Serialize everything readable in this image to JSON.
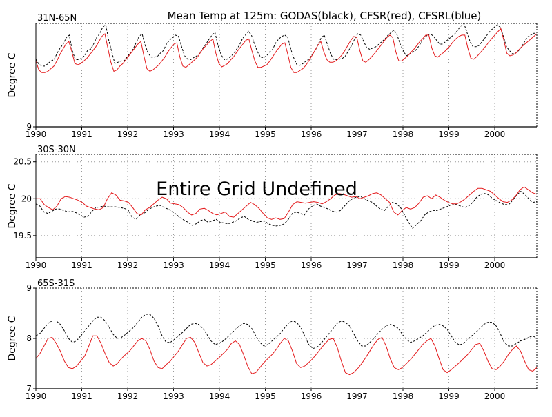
{
  "title": "Mean Temp at 125m: GODAS(black), CFSR(red), CFSRL(blue)",
  "colors": {
    "godas": "#000000",
    "cfsr": "#e41a1c",
    "grid": "#9a9a9a",
    "frame": "#000000"
  },
  "chart_data": [
    {
      "type": "line",
      "region": "31N-65N",
      "ylabel": "Degree C",
      "xlim": [
        1990,
        2000.917
      ],
      "ylim": [
        9,
        13
      ],
      "yticks": [
        9
      ],
      "xticks": [
        "1990",
        "1991",
        "1992",
        "1993",
        "1994",
        "1995",
        "1996",
        "1997",
        "1998",
        "1999",
        "2000"
      ],
      "grid": true,
      "series": [
        {
          "name": "GODAS",
          "color": "#000000",
          "dashed": true,
          "values": [
            11.62,
            11.42,
            11.35,
            11.35,
            11.45,
            11.55,
            11.6,
            11.85,
            12.05,
            12.2,
            12.45,
            12.55,
            11.95,
            11.6,
            11.6,
            11.65,
            11.75,
            11.95,
            12.0,
            12.2,
            12.45,
            12.6,
            12.85,
            12.95,
            12.35,
            11.9,
            11.45,
            11.5,
            11.55,
            11.55,
            11.7,
            11.85,
            12.0,
            12.25,
            12.5,
            12.6,
            12.15,
            11.85,
            11.7,
            11.7,
            11.72,
            11.85,
            11.95,
            12.2,
            12.35,
            12.45,
            12.55,
            12.5,
            12.1,
            11.75,
            11.62,
            11.6,
            11.68,
            11.75,
            11.85,
            12.05,
            12.2,
            12.38,
            12.55,
            12.65,
            12.15,
            11.8,
            11.6,
            11.62,
            11.7,
            11.82,
            11.98,
            12.15,
            12.4,
            12.55,
            12.7,
            12.55,
            12.2,
            11.9,
            11.7,
            11.68,
            11.75,
            11.9,
            12.0,
            12.25,
            12.4,
            12.5,
            12.55,
            12.45,
            12.0,
            11.65,
            11.4,
            11.38,
            11.45,
            11.55,
            11.62,
            11.8,
            11.95,
            12.2,
            12.45,
            12.55,
            12.2,
            11.85,
            11.62,
            11.6,
            11.62,
            11.65,
            11.75,
            11.95,
            12.15,
            12.4,
            12.6,
            12.55,
            12.3,
            12.05,
            12.0,
            12.05,
            12.1,
            12.2,
            12.3,
            12.4,
            12.55,
            12.65,
            12.75,
            12.55,
            12.2,
            11.95,
            11.75,
            11.8,
            11.88,
            11.95,
            12.1,
            12.28,
            12.45,
            12.55,
            12.6,
            12.5,
            12.35,
            12.2,
            12.2,
            12.3,
            12.4,
            12.5,
            12.6,
            12.75,
            12.9,
            13.0,
            12.65,
            12.3,
            12.1,
            12.1,
            12.15,
            12.3,
            12.45,
            12.62,
            12.75,
            12.85,
            12.95,
            12.85,
            12.5,
            12.1,
            11.95,
            11.82,
            11.85,
            11.95,
            12.1,
            12.3,
            12.48,
            12.55,
            12.62,
            12.62
          ]
        },
        {
          "name": "CFSR",
          "color": "#e41a1c",
          "dashed": false,
          "values": [
            11.55,
            11.2,
            11.1,
            11.1,
            11.15,
            11.25,
            11.35,
            11.55,
            11.8,
            12.0,
            12.2,
            12.3,
            11.9,
            11.45,
            11.4,
            11.45,
            11.55,
            11.65,
            11.8,
            11.95,
            12.1,
            12.3,
            12.5,
            12.6,
            12.05,
            11.5,
            11.15,
            11.2,
            11.35,
            11.45,
            11.6,
            11.75,
            11.9,
            12.05,
            12.2,
            12.3,
            11.75,
            11.25,
            11.15,
            11.2,
            11.3,
            11.4,
            11.55,
            11.7,
            11.9,
            12.05,
            12.2,
            12.25,
            11.7,
            11.35,
            11.3,
            11.4,
            11.5,
            11.6,
            11.72,
            11.9,
            12.05,
            12.18,
            12.3,
            12.4,
            11.85,
            11.45,
            11.32,
            11.38,
            11.45,
            11.6,
            11.72,
            11.9,
            12.05,
            12.2,
            12.35,
            12.4,
            11.95,
            11.55,
            11.3,
            11.3,
            11.35,
            11.4,
            11.55,
            11.72,
            11.9,
            12.05,
            12.2,
            12.25,
            11.8,
            11.3,
            11.1,
            11.1,
            11.18,
            11.25,
            11.38,
            11.55,
            11.75,
            11.95,
            12.15,
            12.3,
            11.9,
            11.6,
            11.5,
            11.5,
            11.55,
            11.65,
            11.78,
            11.95,
            12.15,
            12.35,
            12.5,
            12.45,
            11.95,
            11.55,
            11.5,
            11.6,
            11.72,
            11.85,
            12.0,
            12.15,
            12.3,
            12.45,
            12.55,
            12.45,
            11.9,
            11.55,
            11.55,
            11.65,
            11.75,
            11.88,
            12.0,
            12.15,
            12.3,
            12.42,
            12.55,
            12.55,
            12.05,
            11.75,
            11.7,
            11.8,
            11.88,
            12.0,
            12.12,
            12.28,
            12.4,
            12.5,
            12.55,
            12.55,
            12.05,
            11.65,
            11.62,
            11.72,
            11.85,
            11.98,
            12.12,
            12.28,
            12.42,
            12.55,
            12.68,
            12.8,
            12.35,
            11.85,
            11.75,
            11.78,
            11.85,
            11.98,
            12.1,
            12.2,
            12.3,
            12.4,
            12.5,
            12.6
          ]
        }
      ]
    },
    {
      "type": "line",
      "region": "30S-30N",
      "ylabel": "Degree C",
      "annotation": "Entire Grid Undefined",
      "xlim": [
        1990,
        2000.917
      ],
      "ylim": [
        19.2,
        20.6
      ],
      "yticks": [
        19.5,
        20,
        20.5
      ],
      "xticks": [
        "1990",
        "1991",
        "1992",
        "1993",
        "1994",
        "1995",
        "1996",
        "1997",
        "1998",
        "1999",
        "2000"
      ],
      "grid": true,
      "series": [
        {
          "name": "GODAS",
          "color": "#000000",
          "dashed": true,
          "values": [
            19.93,
            19.9,
            19.82,
            19.8,
            19.83,
            19.86,
            19.86,
            19.84,
            19.82,
            19.83,
            19.81,
            19.78,
            19.75,
            19.76,
            19.83,
            19.88,
            19.89,
            19.9,
            19.89,
            19.89,
            19.89,
            19.88,
            19.87,
            19.85,
            19.75,
            19.72,
            19.78,
            19.8,
            19.85,
            19.88,
            19.9,
            19.91,
            19.88,
            19.86,
            19.83,
            19.79,
            19.74,
            19.71,
            19.68,
            19.64,
            19.66,
            19.7,
            19.72,
            19.68,
            19.7,
            19.72,
            19.68,
            19.67,
            19.66,
            19.68,
            19.7,
            19.74,
            19.76,
            19.72,
            19.7,
            19.68,
            19.69,
            19.7,
            19.66,
            19.64,
            19.63,
            19.64,
            19.66,
            19.72,
            19.8,
            19.82,
            19.8,
            19.78,
            19.86,
            19.9,
            19.93,
            19.9,
            19.88,
            19.86,
            19.83,
            19.82,
            19.84,
            19.9,
            19.96,
            20.0,
            20.02,
            20.03,
            20.0,
            19.97,
            19.95,
            19.9,
            19.86,
            19.84,
            19.9,
            19.95,
            19.93,
            19.88,
            19.78,
            19.68,
            19.6,
            19.65,
            19.7,
            19.78,
            19.82,
            19.84,
            19.84,
            19.86,
            19.88,
            19.9,
            19.93,
            19.92,
            19.9,
            19.88,
            19.9,
            19.95,
            20.02,
            20.06,
            20.07,
            20.05,
            20.0,
            19.97,
            19.94,
            19.92,
            19.92,
            19.98,
            20.05,
            20.1,
            20.06,
            20.0,
            19.95,
            19.96
          ]
        },
        {
          "name": "CFSR",
          "color": "#e41a1c",
          "dashed": false,
          "values": [
            20.0,
            20.0,
            19.92,
            19.88,
            19.85,
            19.9,
            20.0,
            20.03,
            20.02,
            20.0,
            19.98,
            19.95,
            19.9,
            19.88,
            19.86,
            19.85,
            19.88,
            20.0,
            20.08,
            20.05,
            19.98,
            19.97,
            19.95,
            19.88,
            19.8,
            19.78,
            19.85,
            19.88,
            19.93,
            19.98,
            20.02,
            20.0,
            19.94,
            19.93,
            19.92,
            19.88,
            19.82,
            19.78,
            19.8,
            19.86,
            19.87,
            19.84,
            19.8,
            19.78,
            19.8,
            19.82,
            19.76,
            19.75,
            19.8,
            19.85,
            19.9,
            19.95,
            19.92,
            19.87,
            19.8,
            19.74,
            19.72,
            19.74,
            19.72,
            19.73,
            19.82,
            19.92,
            19.96,
            19.95,
            19.94,
            19.95,
            19.96,
            19.95,
            19.93,
            19.96,
            20.0,
            20.05,
            20.07,
            20.06,
            20.04,
            20.02,
            20.03,
            20.0,
            20.02,
            20.04,
            20.07,
            20.08,
            20.05,
            20.0,
            19.95,
            19.82,
            19.78,
            19.84,
            19.88,
            19.86,
            19.88,
            19.94,
            20.02,
            20.04,
            20.0,
            20.05,
            20.02,
            19.98,
            19.95,
            19.93,
            19.93,
            19.96,
            20.0,
            20.05,
            20.1,
            20.14,
            20.14,
            20.12,
            20.1,
            20.05,
            20.0,
            19.96,
            19.95,
            19.98,
            20.04,
            20.12,
            20.16,
            20.12,
            20.08,
            20.06
          ]
        }
      ]
    },
    {
      "type": "line",
      "region": "65S-31S",
      "ylabel": "Degree C",
      "xlim": [
        1990,
        2000.917
      ],
      "ylim": [
        7,
        9
      ],
      "yticks": [
        7,
        8,
        9
      ],
      "xticks": [
        "1990",
        "1991",
        "1992",
        "1993",
        "1994",
        "1995",
        "1996",
        "1997",
        "1998",
        "1999",
        "2000"
      ],
      "grid": true,
      "series": [
        {
          "name": "GODAS",
          "color": "#000000",
          "dashed": true,
          "values": [
            8.05,
            8.1,
            8.2,
            8.3,
            8.35,
            8.35,
            8.28,
            8.15,
            8.0,
            7.92,
            7.95,
            8.05,
            8.15,
            8.25,
            8.35,
            8.42,
            8.42,
            8.35,
            8.22,
            8.08,
            8.0,
            8.02,
            8.08,
            8.15,
            8.22,
            8.32,
            8.42,
            8.48,
            8.48,
            8.4,
            8.25,
            8.05,
            7.92,
            7.92,
            7.98,
            8.05,
            8.12,
            8.2,
            8.28,
            8.3,
            8.28,
            8.2,
            8.08,
            7.95,
            7.88,
            7.9,
            7.95,
            8.02,
            8.1,
            8.18,
            8.25,
            8.3,
            8.28,
            8.2,
            8.05,
            7.92,
            7.85,
            7.88,
            7.95,
            8.02,
            8.1,
            8.2,
            8.3,
            8.35,
            8.32,
            8.22,
            8.05,
            7.88,
            7.8,
            7.82,
            7.9,
            8.0,
            8.1,
            8.2,
            8.3,
            8.35,
            8.32,
            8.25,
            8.1,
            7.95,
            7.85,
            7.85,
            7.92,
            8.0,
            8.1,
            8.18,
            8.25,
            8.28,
            8.25,
            8.2,
            8.08,
            7.98,
            7.92,
            7.95,
            8.0,
            8.05,
            8.12,
            8.2,
            8.26,
            8.28,
            8.25,
            8.18,
            8.05,
            7.92,
            7.87,
            7.9,
            7.98,
            8.05,
            8.12,
            8.2,
            8.28,
            8.32,
            8.32,
            8.25,
            8.1,
            7.92,
            7.85,
            7.85,
            7.9,
            7.95,
            7.98,
            8.02,
            8.05,
            8.0
          ]
        },
        {
          "name": "CFSR",
          "color": "#e41a1c",
          "dashed": false,
          "values": [
            7.6,
            7.7,
            7.85,
            8.0,
            8.02,
            7.9,
            7.75,
            7.55,
            7.42,
            7.4,
            7.45,
            7.55,
            7.65,
            7.85,
            8.05,
            8.05,
            7.9,
            7.7,
            7.52,
            7.45,
            7.5,
            7.6,
            7.68,
            7.75,
            7.85,
            7.95,
            8.0,
            7.95,
            7.78,
            7.55,
            7.42,
            7.4,
            7.48,
            7.55,
            7.65,
            7.75,
            7.88,
            8.0,
            8.02,
            7.92,
            7.72,
            7.52,
            7.45,
            7.48,
            7.55,
            7.62,
            7.7,
            7.78,
            7.9,
            7.95,
            7.88,
            7.68,
            7.45,
            7.3,
            7.32,
            7.42,
            7.52,
            7.6,
            7.68,
            7.78,
            7.9,
            8.0,
            7.95,
            7.75,
            7.5,
            7.42,
            7.45,
            7.52,
            7.6,
            7.7,
            7.8,
            7.9,
            7.98,
            8.0,
            7.82,
            7.55,
            7.32,
            7.28,
            7.32,
            7.4,
            7.5,
            7.62,
            7.75,
            7.88,
            7.98,
            8.02,
            7.85,
            7.6,
            7.42,
            7.38,
            7.42,
            7.5,
            7.58,
            7.68,
            7.78,
            7.88,
            7.95,
            8.0,
            7.85,
            7.6,
            7.38,
            7.32,
            7.38,
            7.45,
            7.52,
            7.6,
            7.68,
            7.78,
            7.88,
            7.9,
            7.75,
            7.55,
            7.4,
            7.38,
            7.45,
            7.55,
            7.68,
            7.78,
            7.85,
            7.75,
            7.55,
            7.38,
            7.35,
            7.42
          ]
        }
      ]
    }
  ]
}
